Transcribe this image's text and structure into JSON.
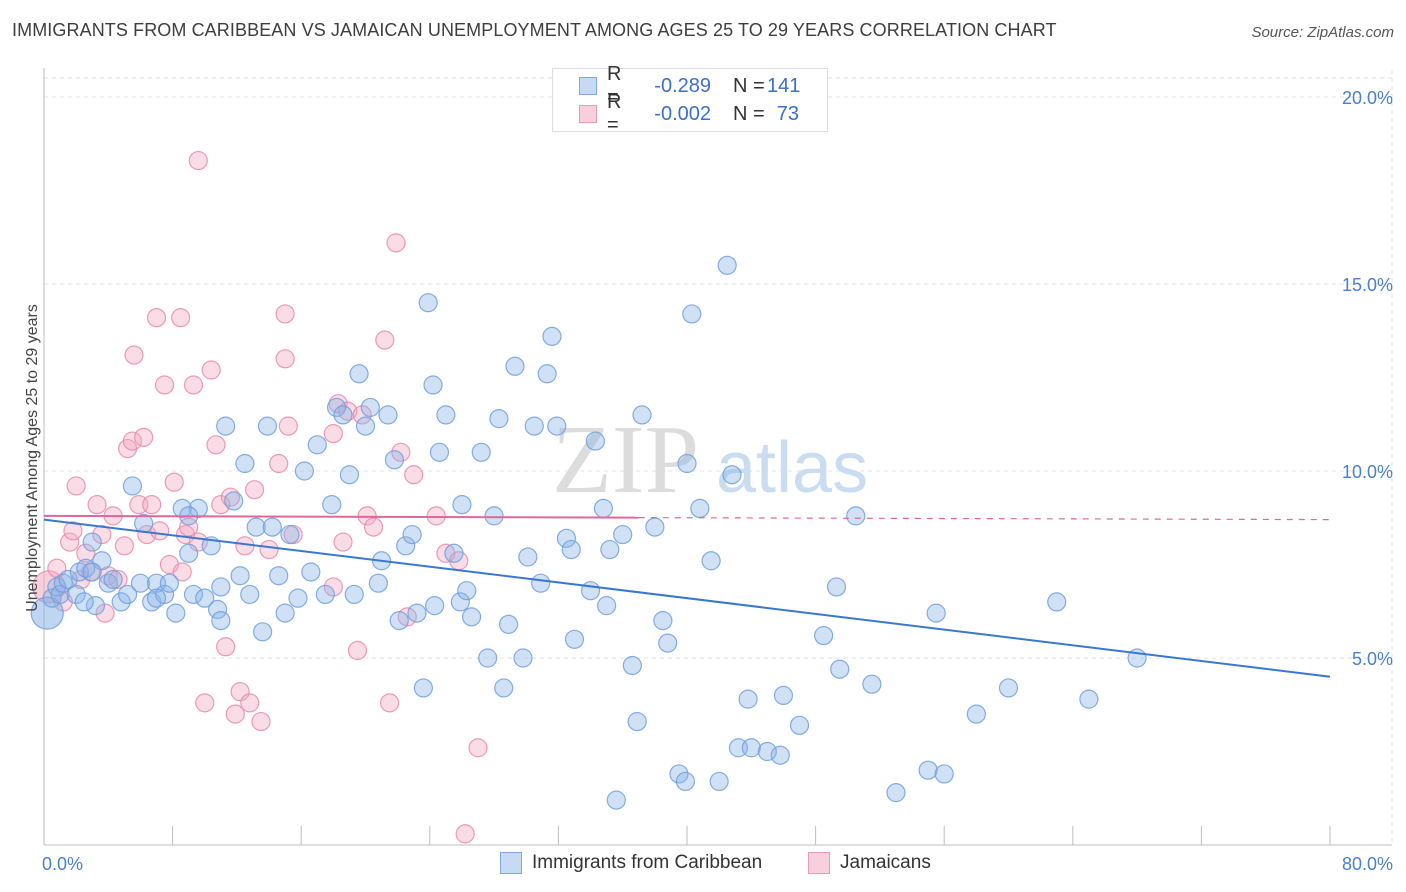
{
  "title": "IMMIGRANTS FROM CARIBBEAN VS JAMAICAN UNEMPLOYMENT AMONG AGES 25 TO 29 YEARS CORRELATION CHART",
  "source": "Source: ZipAtlas.com",
  "watermark": {
    "zip": "ZIP",
    "atlas": "atlas"
  },
  "legend": {
    "rows": [
      {
        "r_label": "R =",
        "r_value": "-0.289",
        "n_label": "N =",
        "n_value": "141"
      },
      {
        "r_label": "R =",
        "r_value": "-0.002",
        "n_label": "N =",
        "n_value": "73"
      }
    ]
  },
  "bottom_legend": [
    "Immigrants from Caribbean",
    "Jamaicans"
  ],
  "colors": {
    "blue": "#8ab3e8",
    "blue_stroke": "#6f9fdc",
    "blue_line": "#3a78d0",
    "pink": "#f2a8c0",
    "pink_stroke": "#e88aab",
    "pink_line": "#e0679a",
    "grid": "#e3e3e3",
    "tick_text": "#4a7fc9"
  },
  "chart_data": {
    "type": "scatter",
    "title": "IMMIGRANTS FROM CARIBBEAN VS JAMAICAN UNEMPLOYMENT AMONG AGES 25 TO 29 YEARS CORRELATION CHART",
    "xlabel": "",
    "ylabel": "Unemployment Among Ages 25 to 29 years",
    "xlim": [
      0,
      80
    ],
    "ylim": [
      0,
      20
    ],
    "x_tick_labels": [
      "0.0%",
      "80.0%"
    ],
    "y_ticks": [
      5,
      10,
      15,
      20
    ],
    "y_tick_labels": [
      "5.0%",
      "10.0%",
      "15.0%",
      "20.0%"
    ],
    "grid": true,
    "series": [
      {
        "name": "Immigrants from Caribbean",
        "color": "#8ab3e8",
        "R": -0.289,
        "N": 141,
        "trend": {
          "x": [
            0,
            80
          ],
          "y": [
            8.7,
            4.5
          ]
        },
        "points": [
          [
            0.2,
            6.2
          ],
          [
            0.5,
            6.6
          ],
          [
            0.8,
            6.9
          ],
          [
            1.0,
            6.7
          ],
          [
            1.2,
            7.0
          ],
          [
            1.5,
            7.1
          ],
          [
            2.0,
            6.7
          ],
          [
            2.2,
            7.3
          ],
          [
            2.6,
            7.4
          ],
          [
            3.0,
            8.1
          ],
          [
            3.2,
            6.4
          ],
          [
            3.6,
            7.6
          ],
          [
            4.0,
            7.0
          ],
          [
            4.3,
            7.1
          ],
          [
            4.8,
            6.5
          ],
          [
            5.2,
            6.7
          ],
          [
            5.5,
            9.6
          ],
          [
            6.0,
            7.0
          ],
          [
            6.2,
            8.6
          ],
          [
            6.7,
            6.5
          ],
          [
            7.0,
            7.0
          ],
          [
            7.5,
            6.7
          ],
          [
            7.8,
            7.0
          ],
          [
            8.2,
            6.2
          ],
          [
            8.6,
            9.0
          ],
          [
            9.0,
            7.8
          ],
          [
            9.3,
            6.7
          ],
          [
            9.6,
            9.0
          ],
          [
            10.0,
            6.6
          ],
          [
            10.4,
            8.0
          ],
          [
            10.8,
            6.3
          ],
          [
            11.0,
            6.9
          ],
          [
            11.3,
            11.2
          ],
          [
            11.8,
            9.2
          ],
          [
            12.2,
            7.2
          ],
          [
            12.5,
            10.2
          ],
          [
            12.8,
            6.7
          ],
          [
            13.2,
            8.5
          ],
          [
            13.6,
            5.7
          ],
          [
            13.9,
            11.2
          ],
          [
            14.2,
            8.5
          ],
          [
            14.6,
            7.2
          ],
          [
            15.0,
            6.2
          ],
          [
            15.3,
            8.3
          ],
          [
            15.8,
            6.6
          ],
          [
            16.2,
            10.0
          ],
          [
            16.6,
            7.3
          ],
          [
            17.0,
            10.7
          ],
          [
            17.5,
            6.7
          ],
          [
            17.9,
            9.1
          ],
          [
            18.2,
            11.7
          ],
          [
            18.6,
            11.5
          ],
          [
            19.0,
            9.9
          ],
          [
            19.3,
            6.7
          ],
          [
            19.6,
            12.6
          ],
          [
            20.0,
            11.2
          ],
          [
            20.3,
            11.7
          ],
          [
            20.8,
            7.0
          ],
          [
            21.0,
            7.6
          ],
          [
            21.4,
            11.5
          ],
          [
            21.8,
            10.3
          ],
          [
            22.1,
            6.0
          ],
          [
            22.5,
            8.0
          ],
          [
            22.9,
            8.3
          ],
          [
            23.2,
            6.2
          ],
          [
            23.6,
            4.2
          ],
          [
            23.9,
            14.5
          ],
          [
            24.2,
            12.3
          ],
          [
            24.6,
            10.5
          ],
          [
            25.0,
            11.5
          ],
          [
            25.5,
            7.8
          ],
          [
            25.9,
            6.5
          ],
          [
            26.3,
            6.8
          ],
          [
            26.6,
            6.1
          ],
          [
            27.2,
            10.5
          ],
          [
            27.6,
            5.0
          ],
          [
            28.0,
            8.8
          ],
          [
            28.3,
            11.4
          ],
          [
            28.6,
            4.2
          ],
          [
            28.9,
            5.9
          ],
          [
            29.3,
            12.8
          ],
          [
            29.8,
            5.0
          ],
          [
            30.1,
            7.7
          ],
          [
            30.5,
            11.2
          ],
          [
            30.9,
            7.0
          ],
          [
            31.3,
            12.6
          ],
          [
            31.6,
            13.6
          ],
          [
            31.9,
            11.2
          ],
          [
            32.5,
            8.2
          ],
          [
            32.8,
            7.9
          ],
          [
            33.0,
            5.5
          ],
          [
            34.0,
            6.8
          ],
          [
            34.3,
            10.8
          ],
          [
            34.8,
            9.0
          ],
          [
            35.2,
            7.9
          ],
          [
            35.6,
            1.2
          ],
          [
            36.0,
            8.3
          ],
          [
            36.6,
            4.8
          ],
          [
            36.9,
            3.3
          ],
          [
            37.2,
            11.5
          ],
          [
            38.0,
            8.5
          ],
          [
            38.5,
            6.0
          ],
          [
            38.8,
            5.4
          ],
          [
            39.5,
            1.9
          ],
          [
            39.9,
            1.7
          ],
          [
            40.0,
            10.2
          ],
          [
            40.3,
            14.2
          ],
          [
            40.8,
            9.0
          ],
          [
            41.5,
            7.6
          ],
          [
            42.0,
            1.7
          ],
          [
            42.5,
            15.5
          ],
          [
            42.8,
            9.9
          ],
          [
            43.2,
            2.6
          ],
          [
            44.0,
            2.6
          ],
          [
            43.8,
            3.9
          ],
          [
            45.0,
            2.5
          ],
          [
            45.8,
            2.4
          ],
          [
            46.0,
            4.0
          ],
          [
            47.0,
            3.2
          ],
          [
            48.5,
            5.6
          ],
          [
            49.3,
            6.9
          ],
          [
            49.5,
            4.7
          ],
          [
            50.5,
            8.8
          ],
          [
            51.5,
            4.3
          ],
          [
            53.0,
            1.4
          ],
          [
            55.0,
            2.0
          ],
          [
            55.5,
            6.2
          ],
          [
            56.0,
            1.9
          ],
          [
            58.0,
            3.5
          ],
          [
            60.0,
            4.2
          ],
          [
            63.0,
            6.5
          ],
          [
            65.0,
            3.9
          ],
          [
            68.0,
            5.0
          ],
          [
            24.3,
            6.4
          ],
          [
            11.0,
            6.0
          ],
          [
            26.0,
            9.1
          ],
          [
            9.0,
            8.8
          ],
          [
            3.0,
            7.3
          ],
          [
            2.5,
            6.5
          ],
          [
            7.0,
            6.6
          ],
          [
            35.0,
            6.4
          ]
        ]
      },
      {
        "name": "Jamaicans",
        "color": "#f2a8c0",
        "R": -0.002,
        "N": 73,
        "trend": {
          "x": [
            0,
            80
          ],
          "y": [
            8.8,
            8.7
          ]
        },
        "points": [
          [
            0.3,
            6.9
          ],
          [
            0.8,
            7.4
          ],
          [
            1.2,
            6.5
          ],
          [
            1.6,
            8.1
          ],
          [
            1.8,
            8.4
          ],
          [
            2.0,
            9.6
          ],
          [
            2.3,
            7.1
          ],
          [
            2.6,
            7.8
          ],
          [
            2.9,
            7.3
          ],
          [
            3.3,
            9.1
          ],
          [
            3.6,
            8.3
          ],
          [
            3.8,
            6.2
          ],
          [
            4.0,
            7.2
          ],
          [
            4.3,
            8.8
          ],
          [
            4.6,
            7.1
          ],
          [
            5.0,
            8.0
          ],
          [
            5.2,
            10.6
          ],
          [
            5.5,
            10.8
          ],
          [
            5.6,
            13.1
          ],
          [
            5.9,
            9.1
          ],
          [
            6.2,
            10.9
          ],
          [
            6.4,
            8.3
          ],
          [
            6.7,
            9.1
          ],
          [
            7.0,
            14.1
          ],
          [
            7.2,
            8.4
          ],
          [
            7.5,
            12.3
          ],
          [
            7.8,
            7.5
          ],
          [
            8.1,
            9.7
          ],
          [
            8.5,
            14.1
          ],
          [
            8.8,
            8.3
          ],
          [
            9.0,
            8.5
          ],
          [
            9.3,
            12.3
          ],
          [
            8.6,
            7.3
          ],
          [
            9.6,
            8.1
          ],
          [
            10.0,
            3.8
          ],
          [
            10.4,
            12.7
          ],
          [
            10.7,
            10.7
          ],
          [
            11.0,
            9.1
          ],
          [
            11.3,
            5.3
          ],
          [
            11.6,
            9.3
          ],
          [
            11.9,
            3.5
          ],
          [
            12.2,
            4.1
          ],
          [
            12.5,
            8.0
          ],
          [
            12.8,
            3.8
          ],
          [
            13.1,
            9.5
          ],
          [
            13.5,
            3.3
          ],
          [
            14.0,
            7.9
          ],
          [
            14.6,
            10.2
          ],
          [
            15.0,
            13.0
          ],
          [
            15.2,
            11.2
          ],
          [
            15.5,
            8.3
          ],
          [
            18.0,
            11.0
          ],
          [
            18.3,
            11.8
          ],
          [
            18.6,
            8.1
          ],
          [
            18.9,
            11.6
          ],
          [
            19.8,
            11.5
          ],
          [
            19.5,
            5.2
          ],
          [
            20.1,
            8.8
          ],
          [
            20.5,
            8.5
          ],
          [
            21.2,
            13.5
          ],
          [
            21.5,
            3.8
          ],
          [
            21.9,
            16.1
          ],
          [
            22.2,
            10.5
          ],
          [
            22.6,
            6.1
          ],
          [
            23.0,
            9.9
          ],
          [
            24.4,
            8.8
          ],
          [
            25.0,
            7.8
          ],
          [
            25.8,
            7.6
          ],
          [
            26.2,
            0.3
          ],
          [
            27.0,
            2.6
          ],
          [
            9.6,
            18.3
          ],
          [
            15.0,
            14.2
          ],
          [
            18.0,
            6.9
          ]
        ]
      }
    ]
  }
}
